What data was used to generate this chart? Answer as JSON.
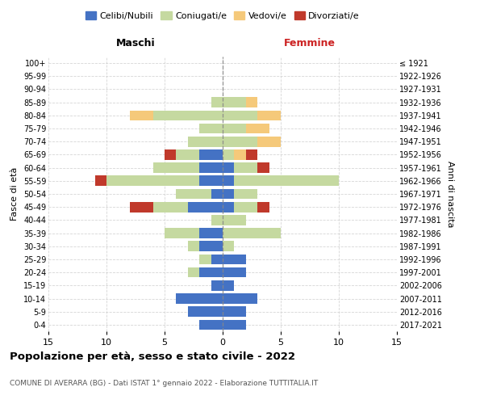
{
  "age_groups": [
    "0-4",
    "5-9",
    "10-14",
    "15-19",
    "20-24",
    "25-29",
    "30-34",
    "35-39",
    "40-44",
    "45-49",
    "50-54",
    "55-59",
    "60-64",
    "65-69",
    "70-74",
    "75-79",
    "80-84",
    "85-89",
    "90-94",
    "95-99",
    "100+"
  ],
  "birth_years": [
    "2017-2021",
    "2012-2016",
    "2007-2011",
    "2002-2006",
    "1997-2001",
    "1992-1996",
    "1987-1991",
    "1982-1986",
    "1977-1981",
    "1972-1976",
    "1967-1971",
    "1962-1966",
    "1957-1961",
    "1952-1956",
    "1947-1951",
    "1942-1946",
    "1937-1941",
    "1932-1936",
    "1927-1931",
    "1922-1926",
    "≤ 1921"
  ],
  "male": {
    "celibi": [
      2,
      3,
      4,
      1,
      2,
      1,
      2,
      2,
      0,
      3,
      1,
      2,
      2,
      2,
      0,
      0,
      0,
      0,
      0,
      0,
      0
    ],
    "coniugati": [
      0,
      0,
      0,
      0,
      1,
      1,
      1,
      3,
      1,
      3,
      3,
      8,
      4,
      2,
      3,
      2,
      6,
      1,
      0,
      0,
      0
    ],
    "vedovi": [
      0,
      0,
      0,
      0,
      0,
      0,
      0,
      0,
      0,
      0,
      0,
      0,
      0,
      0,
      0,
      0,
      2,
      0,
      0,
      0,
      0
    ],
    "divorziati": [
      0,
      0,
      0,
      0,
      0,
      0,
      0,
      0,
      0,
      2,
      0,
      1,
      0,
      1,
      0,
      0,
      0,
      0,
      0,
      0,
      0
    ]
  },
  "female": {
    "nubili": [
      2,
      2,
      3,
      1,
      2,
      2,
      0,
      0,
      0,
      1,
      1,
      1,
      1,
      0,
      0,
      0,
      0,
      0,
      0,
      0,
      0
    ],
    "coniugate": [
      0,
      0,
      0,
      0,
      0,
      0,
      1,
      5,
      2,
      2,
      2,
      9,
      2,
      1,
      3,
      2,
      3,
      2,
      0,
      0,
      0
    ],
    "vedove": [
      0,
      0,
      0,
      0,
      0,
      0,
      0,
      0,
      0,
      0,
      0,
      0,
      0,
      1,
      2,
      2,
      2,
      1,
      0,
      0,
      0
    ],
    "divorziate": [
      0,
      0,
      0,
      0,
      0,
      0,
      0,
      0,
      0,
      1,
      0,
      0,
      1,
      1,
      0,
      0,
      0,
      0,
      0,
      0,
      0
    ]
  },
  "colors": {
    "celibi_nubili": "#4472c4",
    "coniugati": "#c5d9a0",
    "vedovi": "#f5c97a",
    "divorziati": "#c0392b"
  },
  "xlim": 15,
  "title": "Popolazione per età, sesso e stato civile - 2022",
  "subtitle": "COMUNE DI AVERARA (BG) - Dati ISTAT 1° gennaio 2022 - Elaborazione TUTTITALIA.IT",
  "ylabel_left": "Fasce di età",
  "ylabel_right": "Anni di nascita",
  "xlabel_left": "Maschi",
  "xlabel_right": "Femmine"
}
